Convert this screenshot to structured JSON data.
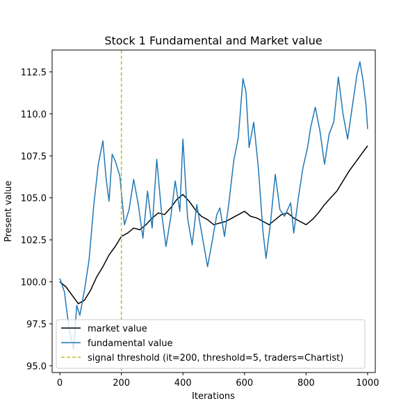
{
  "chart_data": {
    "type": "line",
    "title": "Stock 1 Fundamental and Market value",
    "xlabel": "Iterations",
    "ylabel": "Present value",
    "xlim": [
      -25,
      1025
    ],
    "ylim": [
      94.6,
      113.8
    ],
    "xticks": [
      0,
      200,
      400,
      600,
      800,
      1000
    ],
    "yticks": [
      95.0,
      97.5,
      100.0,
      102.5,
      105.0,
      107.5,
      110.0,
      112.5
    ],
    "grid": false,
    "legend_position": "lower-left",
    "series": [
      {
        "name": "market value",
        "color": "#000000",
        "x": [
          0,
          20,
          40,
          60,
          80,
          100,
          120,
          140,
          160,
          180,
          200,
          220,
          240,
          260,
          280,
          300,
          320,
          340,
          360,
          380,
          400,
          420,
          440,
          460,
          480,
          500,
          520,
          540,
          560,
          580,
          600,
          620,
          640,
          660,
          680,
          700,
          720,
          740,
          760,
          780,
          800,
          820,
          840,
          860,
          880,
          900,
          920,
          940,
          960,
          980,
          1000
        ],
        "y": [
          100.0,
          99.7,
          99.2,
          98.7,
          98.9,
          99.5,
          100.3,
          100.9,
          101.6,
          102.1,
          102.7,
          102.9,
          103.2,
          103.1,
          103.4,
          103.8,
          104.1,
          104.0,
          104.4,
          104.9,
          105.2,
          104.8,
          104.3,
          103.9,
          103.7,
          103.4,
          103.5,
          103.6,
          103.8,
          104.0,
          104.2,
          103.9,
          103.8,
          103.6,
          103.4,
          103.7,
          104.0,
          104.1,
          103.8,
          103.6,
          103.4,
          103.7,
          104.1,
          104.6,
          105.0,
          105.4,
          106.0,
          106.6,
          107.1,
          107.6,
          108.1
        ]
      },
      {
        "name": "fundamental value",
        "color": "#1f77b4",
        "x": [
          0,
          15,
          30,
          45,
          55,
          65,
          80,
          95,
          110,
          125,
          140,
          150,
          160,
          170,
          180,
          195,
          210,
          225,
          240,
          255,
          270,
          285,
          300,
          315,
          330,
          345,
          360,
          375,
          390,
          400,
          415,
          430,
          445,
          460,
          480,
          495,
          510,
          520,
          535,
          550,
          565,
          580,
          595,
          605,
          615,
          630,
          645,
          660,
          670,
          685,
          700,
          715,
          730,
          750,
          760,
          775,
          790,
          805,
          815,
          830,
          845,
          860,
          875,
          890,
          905,
          920,
          935,
          950,
          965,
          975,
          985,
          995,
          1000
        ],
        "y": [
          100.2,
          99.4,
          97.2,
          96.0,
          98.6,
          98.0,
          99.5,
          101.3,
          104.5,
          107.0,
          108.4,
          106.2,
          104.8,
          107.6,
          107.2,
          106.3,
          103.4,
          104.3,
          106.1,
          104.6,
          102.6,
          105.4,
          103.2,
          107.3,
          104.2,
          102.1,
          103.8,
          106.0,
          104.2,
          108.5,
          103.8,
          102.2,
          104.6,
          103.0,
          100.9,
          102.4,
          104.0,
          104.4,
          102.7,
          104.8,
          107.2,
          108.6,
          112.1,
          111.3,
          108.0,
          109.5,
          106.8,
          103.0,
          101.4,
          103.6,
          106.4,
          104.3,
          103.9,
          104.7,
          102.9,
          105.0,
          106.8,
          108.0,
          109.2,
          110.4,
          109.0,
          107.0,
          108.8,
          109.5,
          112.2,
          110.0,
          108.5,
          110.4,
          112.3,
          113.1,
          112.0,
          110.5,
          109.1
        ]
      }
    ],
    "threshold": {
      "name": "signal threshold (it=200, threshold=5, traders=Chartist)",
      "x": 200,
      "color": "#bcbd22",
      "style": "dashed"
    }
  }
}
